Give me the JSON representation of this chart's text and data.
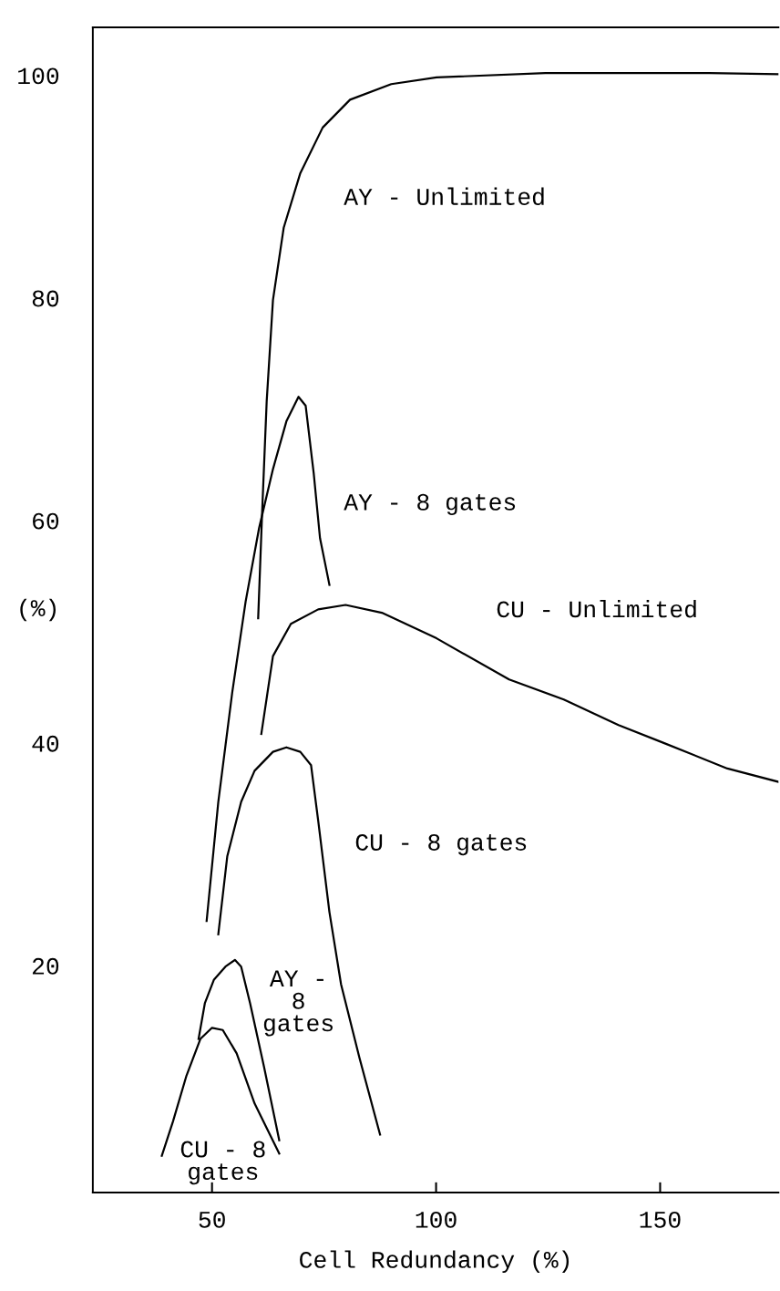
{
  "chart_data": {
    "type": "line",
    "xlabel": "Cell Redundancy (%)",
    "ylabel": "(%)",
    "xlim": [
      23.4,
      176.4
    ],
    "xticks": [
      50,
      100,
      150
    ],
    "ylim": [
      -0.4,
      104.3
    ],
    "yticks": [
      20,
      40,
      60,
      80,
      100
    ],
    "grid": false,
    "legend": false,
    "marker": "none",
    "line_style": "solid",
    "series": [
      {
        "name": "AY - Unlimited",
        "color": "#000000",
        "x": [
          60.3,
          61.2,
          62.2,
          63.6,
          66.0,
          69.7,
          74.7,
          80.8,
          90.0,
          100.1,
          124.4,
          161.0,
          176.4
        ],
        "values": [
          51.2,
          60.9,
          70.7,
          79.8,
          86.3,
          91.2,
          95.3,
          97.8,
          99.2,
          99.8,
          100.2,
          100.2,
          100.1
        ]
      },
      {
        "name": "AY - 8 gates",
        "color": "#000000",
        "x": [
          48.8,
          51.4,
          54.5,
          57.5,
          60.5,
          63.6,
          66.6,
          69.3,
          70.9,
          72.7,
          74.1,
          76.2
        ],
        "values": [
          24.0,
          34.7,
          44.5,
          52.7,
          59.3,
          64.6,
          68.9,
          71.1,
          70.3,
          64.2,
          58.4,
          54.2
        ]
      },
      {
        "name": "CU - Unlimited",
        "color": "#000000",
        "x": [
          61.0,
          63.6,
          67.6,
          73.7,
          79.8,
          87.9,
          100.1,
          116.3,
          128.5,
          140.7,
          150.8,
          165.0,
          176.4
        ],
        "values": [
          40.8,
          47.8,
          50.7,
          52.0,
          52.4,
          51.7,
          49.4,
          45.7,
          43.9,
          41.6,
          40.0,
          37.7,
          36.5
        ]
      },
      {
        "name": "CU - 8 gates",
        "color": "#000000",
        "x": [
          51.4,
          53.4,
          56.5,
          59.5,
          63.6,
          66.6,
          69.7,
          72.1,
          73.7,
          76.2,
          78.8,
          82.9,
          87.5
        ],
        "values": [
          22.8,
          29.8,
          34.7,
          37.5,
          39.2,
          39.6,
          39.2,
          38.0,
          33.0,
          24.8,
          18.3,
          11.7,
          4.8
        ]
      },
      {
        "name": "AY -\n8\ngates",
        "color": "#000000",
        "x": [
          47.0,
          48.4,
          50.4,
          53.0,
          55.1,
          56.5,
          58.5,
          61.6,
          65.0
        ],
        "values": [
          13.4,
          16.6,
          18.7,
          19.9,
          20.5,
          19.9,
          16.6,
          10.9,
          4.3
        ]
      },
      {
        "name": "CU - 8\ngates",
        "color": "#000000",
        "x": [
          38.8,
          41.3,
          44.3,
          47.4,
          50.0,
          52.4,
          55.5,
          59.5,
          65.0
        ],
        "values": [
          2.9,
          6.0,
          10.1,
          13.4,
          14.4,
          14.2,
          12.1,
          7.6,
          3.1
        ]
      }
    ]
  }
}
